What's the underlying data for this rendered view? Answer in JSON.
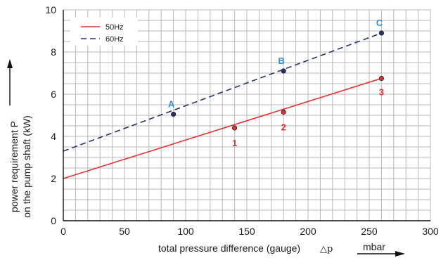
{
  "chart_data": {
    "type": "line",
    "title": "",
    "xlabel": "total pressure difference (gauge)",
    "xlabel_symbol": "△p",
    "xunit": "mbar",
    "ylabel_lines": [
      "power requirement P",
      "on the pump shaft (kW)"
    ],
    "xlim": [
      0,
      300
    ],
    "ylim": [
      0,
      10
    ],
    "x_ticks": [
      0,
      50,
      100,
      150,
      200,
      250,
      300
    ],
    "y_ticks": [
      0,
      2,
      4,
      6,
      8,
      10
    ],
    "grid": true,
    "legend_position": "top-left",
    "series": [
      {
        "name": "50Hz",
        "color": "#e03030",
        "dash": "solid",
        "x": [
          0,
          260
        ],
        "y": [
          2.0,
          6.75
        ],
        "points": [
          {
            "label": "1",
            "x": 140,
            "y": 4.4
          },
          {
            "label": "2",
            "x": 180,
            "y": 5.15
          },
          {
            "label": "3",
            "x": 260,
            "y": 6.75
          }
        ]
      },
      {
        "name": "60Hz",
        "color": "#2a2f6e",
        "dash": "dashed",
        "x": [
          0,
          260
        ],
        "y": [
          3.3,
          8.9
        ],
        "label_color": "#3a8ed0",
        "points": [
          {
            "label": "A",
            "x": 90,
            "y": 5.05
          },
          {
            "label": "B",
            "x": 180,
            "y": 7.1
          },
          {
            "label": "C",
            "x": 260,
            "y": 8.9
          }
        ]
      }
    ]
  },
  "colors": {
    "grid": "#b8b8b8",
    "axis": "#111111"
  }
}
